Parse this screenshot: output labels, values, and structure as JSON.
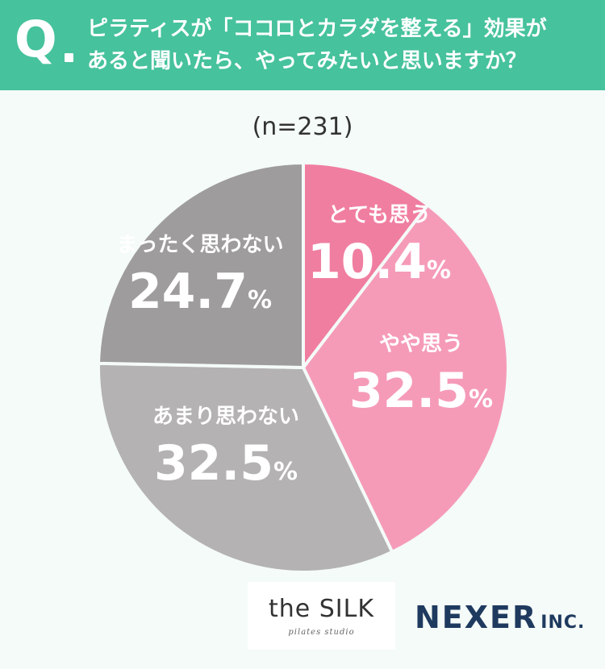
{
  "header": {
    "q_mark": "Q",
    "question_line1": "ピラティスが「ココロとカラダを整える」効果が",
    "question_line2": "あると聞いたら、やってみたいと思いますか？"
  },
  "sample_size": "(n=231)",
  "chart_data": {
    "type": "pie",
    "start_angle_deg": 0,
    "direction": "clockwise",
    "slices": [
      {
        "label": "とても思う",
        "value": 10.4,
        "color": "#f07ea0",
        "text_color": "#ffffff"
      },
      {
        "label": "やや思う",
        "value": 32.5,
        "color": "#f59bb8",
        "text_color": "#ffffff"
      },
      {
        "label": "あまり思わない",
        "value": 32.5,
        "color": "#b4b2b3",
        "text_color": "#ffffff"
      },
      {
        "label": "まったく思わない",
        "value": 24.7,
        "color": "#9e9c9d",
        "text_color": "#ffffff"
      }
    ],
    "value_suffix": "%"
  },
  "logos": {
    "silk_main": "the SILK",
    "silk_sub": "pilates studio",
    "nexer_main": "NEXER",
    "nexer_inc": "INC."
  }
}
